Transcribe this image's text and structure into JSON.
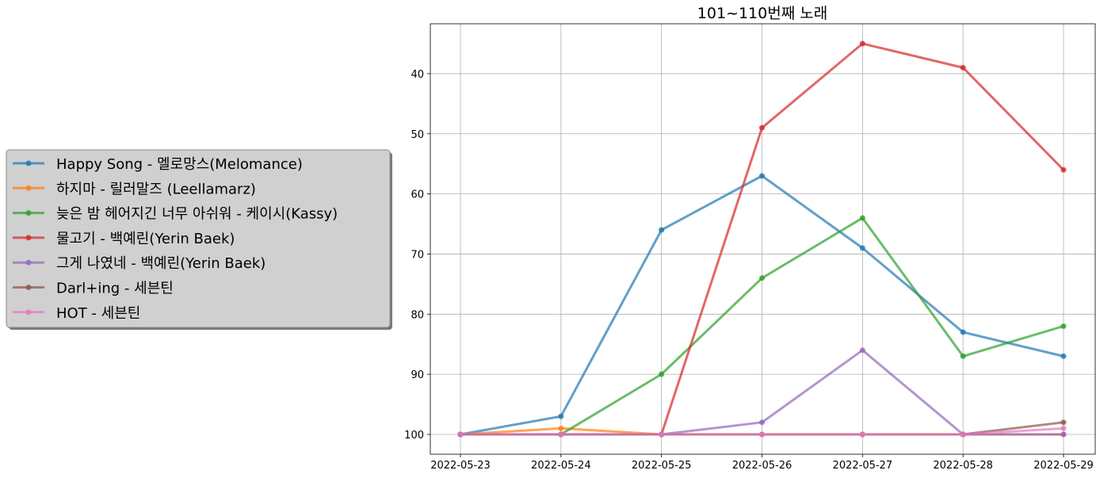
{
  "chart_data": {
    "type": "line",
    "title": "101~110번째 노래",
    "xlabel": "",
    "ylabel": "",
    "x": [
      "2022-05-23",
      "2022-05-24",
      "2022-05-25",
      "2022-05-26",
      "2022-05-27",
      "2022-05-28",
      "2022-05-29"
    ],
    "ylim": [
      103.3,
      31.7
    ],
    "y_inverted": true,
    "yticks": [
      40,
      50,
      60,
      70,
      80,
      90,
      100
    ],
    "grid": true,
    "legend_position": "left-center, outside plot",
    "series": [
      {
        "name": "Happy Song - 멜로망스(Melomance)",
        "color": "#1f77b4",
        "values": [
          100,
          97,
          66,
          57,
          69,
          83,
          87
        ]
      },
      {
        "name": "하지마 - 릴러말즈 (Leellamarz)",
        "color": "#ff7f0e",
        "values": [
          100,
          99,
          100,
          100,
          100,
          100,
          100
        ]
      },
      {
        "name": "늦은 밤 헤어지긴 너무 아쉬워 - 케이시(Kassy)",
        "color": "#2ca02c",
        "values": [
          100,
          100,
          90,
          74,
          64,
          87,
          82
        ]
      },
      {
        "name": "물고기 - 백예린(Yerin Baek)",
        "color": "#d62728",
        "values": [
          100,
          100,
          100,
          49,
          35,
          39,
          56
        ]
      },
      {
        "name": "그게 나였네 - 백예린(Yerin Baek)",
        "color": "#9467bd",
        "values": [
          100,
          100,
          100,
          98,
          86,
          100,
          100
        ]
      },
      {
        "name": "Darl+ing - 세븐틴",
        "color": "#8c564b",
        "values": [
          100,
          100,
          100,
          100,
          100,
          100,
          98
        ]
      },
      {
        "name": "HOT - 세븐틴",
        "color": "#e377c2",
        "values": [
          100,
          100,
          100,
          100,
          100,
          100,
          99
        ]
      }
    ]
  }
}
